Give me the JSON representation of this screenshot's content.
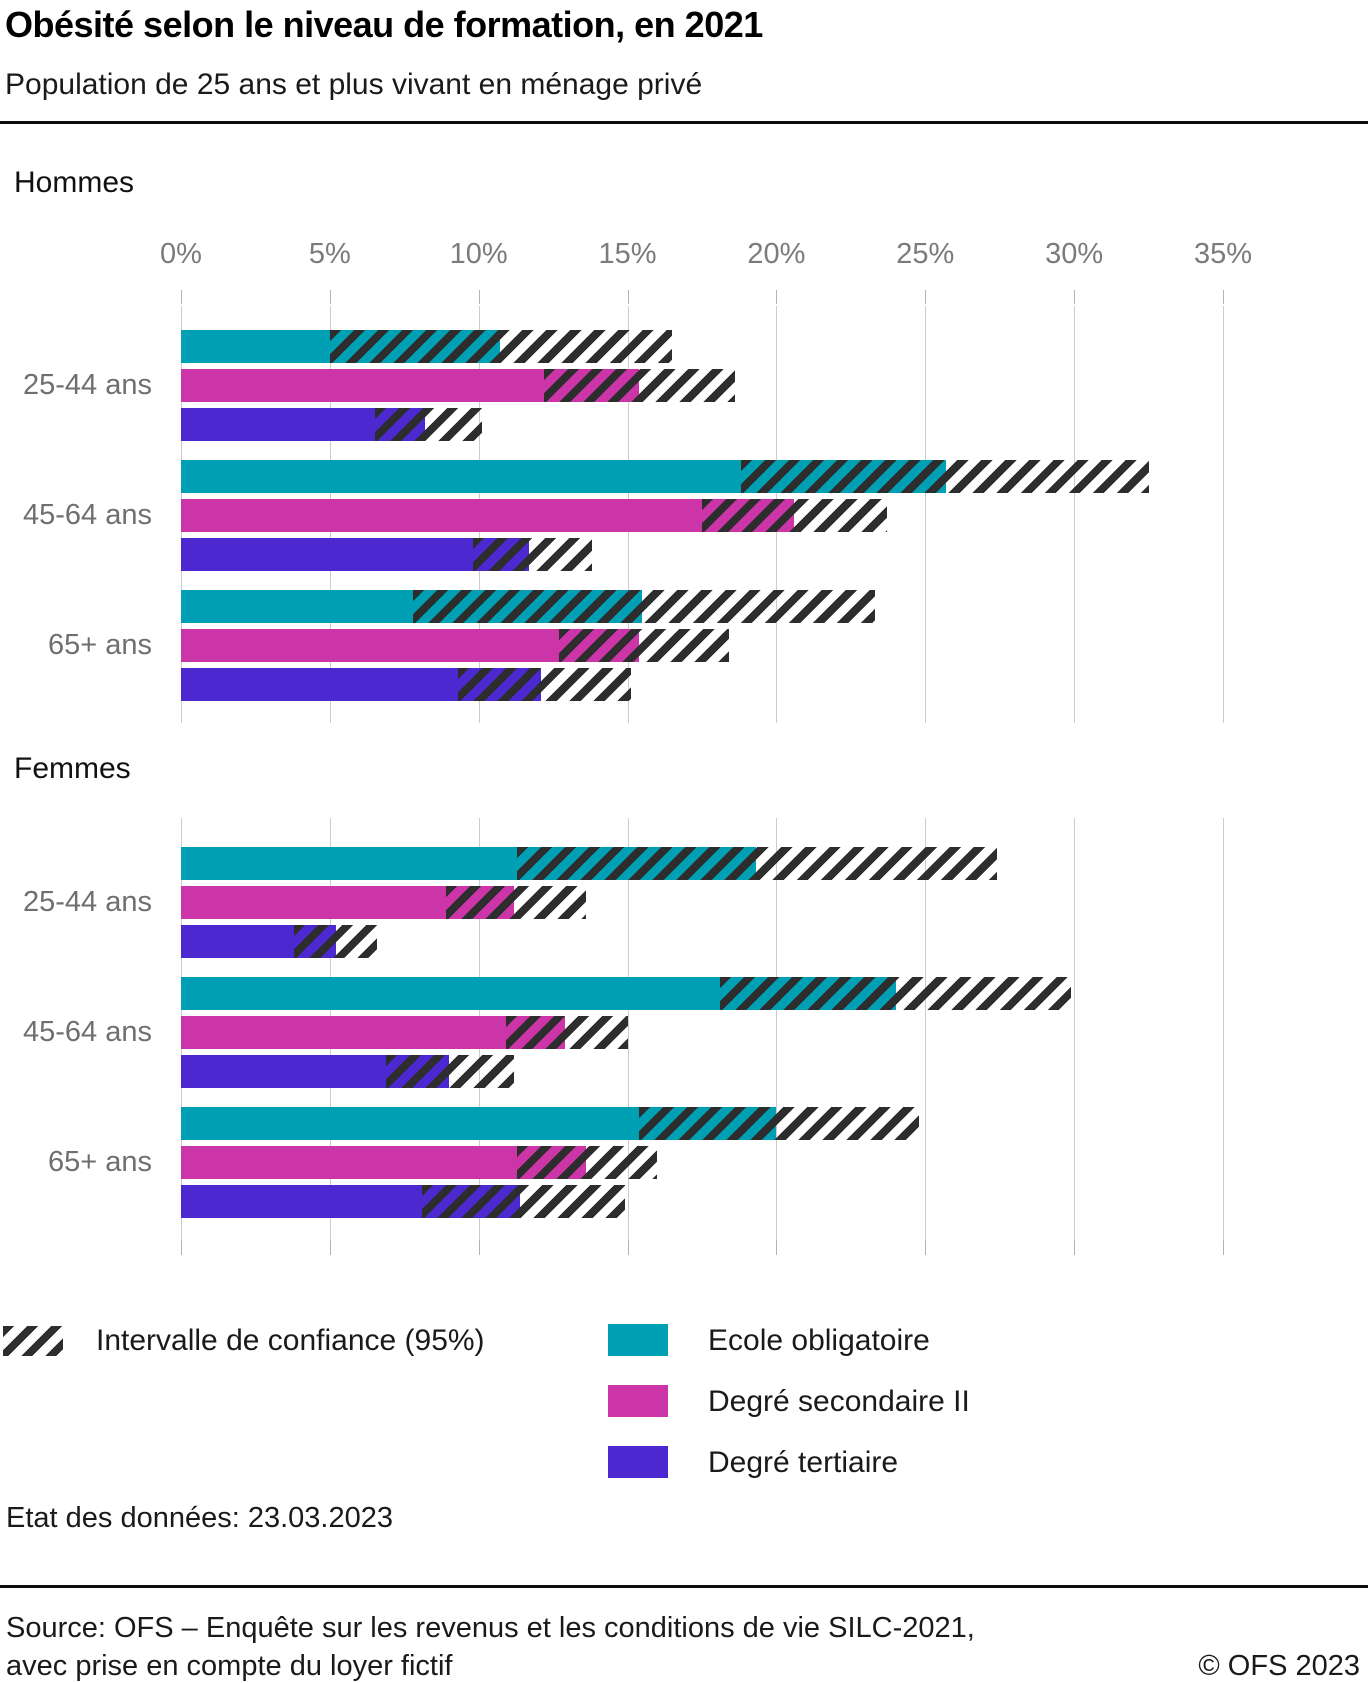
{
  "header": {
    "title": "Obésité selon le niveau de formation, en 2021",
    "subtitle": "Population de 25 ans et plus vivant en ménage privé"
  },
  "chart_data": {
    "type": "bar",
    "orientation": "horizontal",
    "unit": "%",
    "x_axis": {
      "min": 0,
      "max": 35,
      "tick_step": 5,
      "tick_labels": [
        "0%",
        "5%",
        "10%",
        "15%",
        "20%",
        "25%",
        "30%",
        "35%"
      ],
      "grid": true
    },
    "age_groups": [
      "25-44 ans",
      "45-64 ans",
      "65+ ans"
    ],
    "education_levels": [
      {
        "name": "Ecole obligatoire",
        "color": "#00a0b4"
      },
      {
        "name": "Degré secondaire II",
        "color": "#cb35a7"
      },
      {
        "name": "Degré tertiaire",
        "color": "#4c28d0"
      }
    ],
    "ci_note": "Intervalle de confiance (95%)",
    "sections": [
      {
        "label": "Hommes",
        "groups": [
          {
            "age": "25-44 ans",
            "bars": [
              {
                "level": "Ecole obligatoire",
                "value": 10.7,
                "ci_low": 5.0,
                "ci_high": 16.5
              },
              {
                "level": "Degré secondaire II",
                "value": 15.4,
                "ci_low": 12.2,
                "ci_high": 18.6
              },
              {
                "level": "Degré tertiaire",
                "value": 8.2,
                "ci_low": 6.5,
                "ci_high": 10.1
              }
            ]
          },
          {
            "age": "45-64 ans",
            "bars": [
              {
                "level": "Ecole obligatoire",
                "value": 25.7,
                "ci_low": 18.8,
                "ci_high": 32.5
              },
              {
                "level": "Degré secondaire II",
                "value": 20.6,
                "ci_low": 17.5,
                "ci_high": 23.7
              },
              {
                "level": "Degré tertiaire",
                "value": 11.7,
                "ci_low": 9.8,
                "ci_high": 13.8
              }
            ]
          },
          {
            "age": "65+ ans",
            "bars": [
              {
                "level": "Ecole obligatoire",
                "value": 15.5,
                "ci_low": 7.8,
                "ci_high": 23.3
              },
              {
                "level": "Degré secondaire II",
                "value": 15.4,
                "ci_low": 12.7,
                "ci_high": 18.4
              },
              {
                "level": "Degré tertiaire",
                "value": 12.1,
                "ci_low": 9.3,
                "ci_high": 15.1
              }
            ]
          }
        ]
      },
      {
        "label": "Femmes",
        "groups": [
          {
            "age": "25-44 ans",
            "bars": [
              {
                "level": "Ecole obligatoire",
                "value": 19.3,
                "ci_low": 11.3,
                "ci_high": 27.4
              },
              {
                "level": "Degré secondaire II",
                "value": 11.2,
                "ci_low": 8.9,
                "ci_high": 13.6
              },
              {
                "level": "Degré tertiaire",
                "value": 5.2,
                "ci_low": 3.8,
                "ci_high": 6.6
              }
            ]
          },
          {
            "age": "45-64 ans",
            "bars": [
              {
                "level": "Ecole obligatoire",
                "value": 24.0,
                "ci_low": 18.1,
                "ci_high": 29.9
              },
              {
                "level": "Degré secondaire II",
                "value": 12.9,
                "ci_low": 10.9,
                "ci_high": 15.0
              },
              {
                "level": "Degré tertiaire",
                "value": 9.0,
                "ci_low": 6.9,
                "ci_high": 11.2
              }
            ]
          },
          {
            "age": "65+ ans",
            "bars": [
              {
                "level": "Ecole obligatoire",
                "value": 20.0,
                "ci_low": 15.4,
                "ci_high": 24.8
              },
              {
                "level": "Degré secondaire II",
                "value": 13.6,
                "ci_low": 11.3,
                "ci_high": 16.0
              },
              {
                "level": "Degré tertiaire",
                "value": 11.4,
                "ci_low": 8.1,
                "ci_high": 14.9
              }
            ]
          }
        ]
      }
    ]
  },
  "legend": {
    "ci_label": "Intervalle de confiance (95%)",
    "items": [
      "Ecole obligatoire",
      "Degré secondaire II",
      "Degré tertiaire"
    ]
  },
  "footer": {
    "data_state": "Etat des données: 23.03.2023",
    "source_line1": "Source: OFS – Enquête sur les revenus et les conditions de vie SILC-2021,",
    "source_line2": "avec prise en compte du loyer fictif",
    "copyright": "© OFS 2023"
  }
}
